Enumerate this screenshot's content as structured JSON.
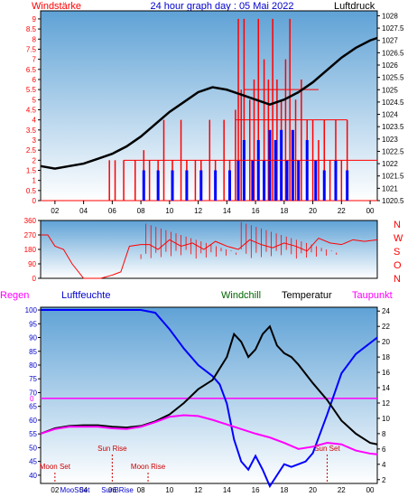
{
  "header": {
    "left_label": "Windstärke",
    "title": "24 hour graph day : 05 Mai 2022",
    "right_label": "Luftdruck"
  },
  "colors": {
    "wind": "#ff0000",
    "gust": "#0000ff",
    "pressure": "#000000",
    "humidity": "#0000ff",
    "windchill": "#006400",
    "temperature": "#000000",
    "dewpoint": "#ff00ff",
    "frost_line": "#ff00ff",
    "astro": "#cc0000",
    "plot_top": "#5fa2d6",
    "plot_bottom": "#ffffff"
  },
  "chart_data": [
    {
      "type": "bar",
      "id": "wind",
      "x_ticks": [
        "02",
        "04",
        "06",
        "08",
        "10",
        "12",
        "14",
        "16",
        "18",
        "20",
        "22",
        "00"
      ],
      "y_left_ticks": [
        "0",
        "0.5",
        "1",
        "1.5",
        "2",
        "2.5",
        "3",
        "3.5",
        "4",
        "4.5",
        "5",
        "5.5",
        "6",
        "6.5",
        "7",
        "7.5",
        "8",
        "8.5",
        "9"
      ],
      "y_right_ticks": [
        "1020.5",
        "1021",
        "1021.5",
        "1022",
        "1022.5",
        "1023",
        "1023.5",
        "1024",
        "1024.5",
        "1025",
        "1025.5",
        "1026",
        "1026.5",
        "1027",
        "1027.5",
        "1028"
      ],
      "ylim_left": [
        0,
        9.4
      ],
      "ylim_right": [
        1020.5,
        1028.2
      ],
      "xlim": [
        1,
        24.5
      ],
      "series": [
        {
          "name": "Windstärke",
          "hours": [
            5.8,
            6.2,
            6.8,
            7.6,
            8.2,
            8.6,
            9.2,
            9.6,
            10.2,
            10.8,
            11.2,
            11.8,
            12.2,
            12.8,
            13.2,
            13.8,
            14.2,
            14.6,
            14.8,
            15.0,
            15.2,
            15.6,
            15.9,
            16.2,
            16.6,
            16.9,
            17.2,
            17.5,
            17.8,
            18.1,
            18.4,
            18.8,
            19.2,
            19.6,
            20.0,
            20.4,
            20.8,
            21.2,
            21.6,
            22.0,
            22.4
          ],
          "values": [
            2,
            2,
            2,
            2,
            2.5,
            2,
            2,
            4,
            2,
            4,
            2,
            2,
            2,
            4,
            2,
            4,
            2,
            4.5,
            9,
            5.5,
            9,
            5,
            6,
            9,
            7,
            6,
            9,
            6,
            5,
            7,
            9,
            5,
            6,
            4,
            4,
            3,
            4,
            2,
            4,
            2,
            4
          ]
        },
        {
          "name": "Böen",
          "hours": [
            8.2,
            9.2,
            10.2,
            11.2,
            12.2,
            13.2,
            14.2,
            14.8,
            15.2,
            15.8,
            16.2,
            16.6,
            17.0,
            17.4,
            17.8,
            18.2,
            18.6,
            19.0,
            19.6,
            20.2,
            20.8,
            21.6,
            22.4
          ],
          "values": [
            1.5,
            1.5,
            1.5,
            1.5,
            1.5,
            1.5,
            1.5,
            2,
            3,
            2,
            3,
            2,
            3.5,
            3,
            3.5,
            2,
            3.5,
            2,
            3,
            2,
            1.5,
            2,
            1.5
          ]
        },
        {
          "name": "Luftdruck",
          "x": [
            1.0,
            2.0,
            3.0,
            4.0,
            5.0,
            6.0,
            7.0,
            8.0,
            9.0,
            10.0,
            11.0,
            12.0,
            13.0,
            14.0,
            15.0,
            16.0,
            17.0,
            18.0,
            19.0,
            20.0,
            21.0,
            22.0,
            23.0,
            24.0,
            24.5
          ],
          "y": [
            1021.9,
            1021.8,
            1021.9,
            1022.0,
            1022.2,
            1022.4,
            1022.7,
            1023.1,
            1023.6,
            1024.1,
            1024.5,
            1024.9,
            1025.1,
            1025.0,
            1024.8,
            1024.6,
            1024.4,
            1024.6,
            1024.9,
            1025.3,
            1025.8,
            1026.3,
            1026.7,
            1027.0,
            1027.1
          ]
        }
      ]
    },
    {
      "type": "line",
      "id": "wind_direction",
      "y_ticks": [
        "0",
        "90",
        "180",
        "270",
        "360"
      ],
      "right_labels": [
        "N",
        "W",
        "S",
        "O",
        "N"
      ],
      "ylim": [
        0,
        360
      ],
      "series": [
        {
          "name": "Windrichtung",
          "x": [
            1.0,
            1.5,
            2.0,
            2.6,
            3.2,
            4.0,
            4.6,
            5.2,
            6.0,
            6.6,
            7.2,
            8.0,
            8.6,
            9.2,
            10.0,
            10.8,
            11.6,
            12.4,
            13.2,
            14.0,
            14.8,
            15.6,
            16.4,
            17.2,
            18.0,
            18.8,
            19.6,
            20.4,
            21.2,
            22.0,
            22.8,
            23.6,
            24.5
          ],
          "y": [
            270,
            270,
            200,
            180,
            90,
            0,
            0,
            0,
            20,
            40,
            200,
            210,
            210,
            180,
            240,
            200,
            220,
            180,
            230,
            200,
            180,
            240,
            210,
            190,
            220,
            200,
            170,
            250,
            220,
            210,
            240,
            230,
            240
          ]
        }
      ]
    },
    {
      "type": "line",
      "id": "temperature",
      "legend": [
        "Regen",
        "Luftfeuchte",
        "Windchill",
        "Temperatur",
        "Taupunkt"
      ],
      "y_left_ticks": [
        "40",
        "45",
        "50",
        "55",
        "60",
        "65",
        "70",
        "75",
        "80",
        "85",
        "90",
        "95",
        "100"
      ],
      "y_right_ticks": [
        "2",
        "4",
        "6",
        "8",
        "10",
        "12",
        "14",
        "16",
        "18",
        "20",
        "22",
        "24"
      ],
      "zero_label": "0",
      "ylim_left": [
        37,
        101
      ],
      "ylim_right": [
        1.5,
        24.5
      ],
      "series": [
        {
          "name": "Luftfeuchte",
          "x": [
            1,
            2,
            3,
            4,
            5,
            6,
            7,
            8,
            9,
            10,
            11,
            12,
            13,
            13.5,
            14,
            14.5,
            15,
            15.5,
            16,
            16.5,
            17,
            17.5,
            18,
            18.5,
            19,
            19.5,
            20,
            21,
            22,
            23,
            24,
            24.5
          ],
          "y": [
            100,
            100,
            100,
            100,
            100,
            100,
            100,
            100,
            99,
            93,
            86,
            80,
            76,
            73,
            66,
            53,
            45,
            42,
            47,
            42,
            36,
            40,
            44,
            43,
            44,
            45,
            48,
            62,
            77,
            84,
            88,
            90
          ]
        },
        {
          "name": "Temperatur",
          "x": [
            1,
            2,
            3,
            4,
            5,
            6,
            7,
            8,
            9,
            10,
            11,
            12,
            13,
            14,
            14.5,
            15,
            15.5,
            16,
            16.5,
            17,
            17.5,
            18,
            18.5,
            19,
            20,
            21,
            22,
            23,
            24,
            24.5
          ],
          "y": [
            8,
            8.7,
            9,
            9.1,
            9.1,
            8.9,
            8.8,
            9,
            9.6,
            10.5,
            12,
            13.8,
            15,
            18,
            21,
            20,
            18,
            19,
            21,
            22,
            19.5,
            18.5,
            18,
            17,
            14.6,
            12.4,
            9.7,
            8,
            6.8,
            6.6
          ]
        },
        {
          "name": "Taupunkt",
          "x": [
            1,
            2,
            3,
            4,
            5,
            6,
            7,
            8,
            9,
            10,
            11,
            12,
            13,
            14,
            15,
            16,
            17,
            18,
            19,
            20,
            21,
            22,
            23,
            24,
            24.5
          ],
          "y": [
            8,
            8.6,
            8.9,
            8.9,
            8.9,
            8.7,
            8.6,
            8.9,
            9.5,
            10.2,
            10.4,
            10.3,
            9.8,
            9.2,
            8.6,
            8,
            7.5,
            6.8,
            6,
            6.3,
            6.8,
            6.6,
            5.8,
            5.4,
            5.3
          ]
        }
      ],
      "astro": [
        {
          "label": "Sun Rise",
          "x": 6.0,
          "level": "upper"
        },
        {
          "label": "Moon Set",
          "x": 2.0,
          "level": "lower"
        },
        {
          "label": "Moon Rise",
          "x": 8.5,
          "level": "lower"
        },
        {
          "label": "Sun Set",
          "x": 21.0,
          "level": "upper"
        }
      ],
      "bottom_labels": [
        "MooSSet",
        "SunBRise"
      ]
    }
  ]
}
